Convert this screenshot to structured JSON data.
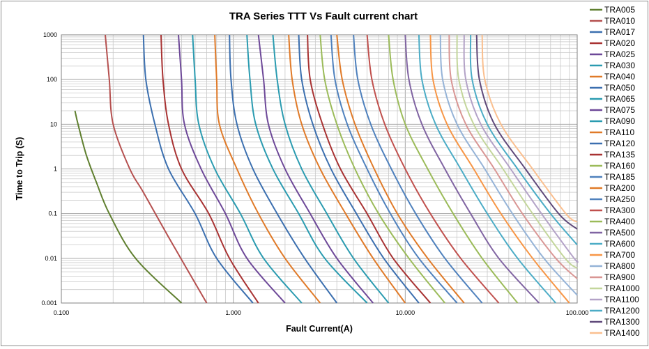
{
  "chart_data": {
    "type": "line",
    "title": "TRA  Series TTT Vs Fault current chart",
    "xlabel": "Fault Current(A)",
    "ylabel": "Time to Trip (S)",
    "x_scale": "log",
    "y_scale": "log",
    "xlim": [
      0.1,
      100
    ],
    "ylim": [
      0.001,
      1000
    ],
    "x_ticks": [
      {
        "value": 0.1,
        "label": "0.100"
      },
      {
        "value": 1,
        "label": "1.000"
      },
      {
        "value": 10,
        "label": "10.000"
      },
      {
        "value": 100,
        "label": "100.000"
      }
    ],
    "y_ticks": [
      {
        "value": 0.001,
        "label": "0.001"
      },
      {
        "value": 0.01,
        "label": "0.01"
      },
      {
        "value": 0.1,
        "label": "0.1"
      },
      {
        "value": 1,
        "label": "1"
      },
      {
        "value": 10,
        "label": "10"
      },
      {
        "value": 100,
        "label": "100"
      },
      {
        "value": 1000,
        "label": "1000"
      }
    ],
    "grid": true,
    "legend_position": "right",
    "series": [
      {
        "name": "TRA005",
        "color": "#5f7f2f",
        "points": [
          [
            0.12,
            20
          ],
          [
            0.125,
            10
          ],
          [
            0.14,
            2
          ],
          [
            0.16,
            0.5
          ],
          [
            0.19,
            0.1
          ],
          [
            0.27,
            0.01
          ],
          [
            0.5,
            0.001
          ]
        ]
      },
      {
        "name": "TRA010",
        "color": "#b5504f",
        "points": [
          [
            0.18,
            1000
          ],
          [
            0.19,
            100
          ],
          [
            0.2,
            10
          ],
          [
            0.25,
            1
          ],
          [
            0.3,
            0.3
          ],
          [
            0.42,
            0.03
          ],
          [
            0.7,
            0.001
          ]
        ]
      },
      {
        "name": "TRA017",
        "color": "#3b6faf",
        "points": [
          [
            0.3,
            1000
          ],
          [
            0.31,
            100
          ],
          [
            0.35,
            10
          ],
          [
            0.42,
            1
          ],
          [
            0.6,
            0.1
          ],
          [
            0.8,
            0.01
          ],
          [
            1.3,
            0.001
          ]
        ]
      },
      {
        "name": "TRA020",
        "color": "#a83232",
        "points": [
          [
            0.38,
            1000
          ],
          [
            0.39,
            100
          ],
          [
            0.42,
            10
          ],
          [
            0.5,
            1
          ],
          [
            0.72,
            0.1
          ],
          [
            0.95,
            0.01
          ],
          [
            1.4,
            0.001
          ]
        ]
      },
      {
        "name": "TRA025",
        "color": "#6d4898",
        "points": [
          [
            0.48,
            1000
          ],
          [
            0.5,
            100
          ],
          [
            0.52,
            10
          ],
          [
            0.65,
            1
          ],
          [
            0.9,
            0.1
          ],
          [
            1.2,
            0.01
          ],
          [
            2,
            0.001
          ]
        ]
      },
      {
        "name": "TRA030",
        "color": "#2a9bb0",
        "points": [
          [
            0.58,
            1000
          ],
          [
            0.6,
            100
          ],
          [
            0.63,
            10
          ],
          [
            0.78,
            1
          ],
          [
            1.1,
            0.1
          ],
          [
            1.5,
            0.01
          ],
          [
            2.5,
            0.001
          ]
        ]
      },
      {
        "name": "TRA040",
        "color": "#e07a28",
        "points": [
          [
            0.78,
            1000
          ],
          [
            0.8,
            100
          ],
          [
            0.83,
            10
          ],
          [
            1.05,
            1
          ],
          [
            1.4,
            0.1
          ],
          [
            2,
            0.01
          ],
          [
            3.2,
            0.001
          ]
        ]
      },
      {
        "name": "TRA050",
        "color": "#3b6faf",
        "points": [
          [
            0.95,
            1000
          ],
          [
            0.97,
            100
          ],
          [
            1.05,
            10
          ],
          [
            1.3,
            1
          ],
          [
            1.8,
            0.1
          ],
          [
            2.6,
            0.01
          ],
          [
            4,
            0.001
          ]
        ]
      },
      {
        "name": "TRA065",
        "color": "#2a9bb0",
        "points": [
          [
            1.2,
            1000
          ],
          [
            1.25,
            100
          ],
          [
            1.35,
            10
          ],
          [
            1.7,
            1
          ],
          [
            2.4,
            0.1
          ],
          [
            3.4,
            0.01
          ],
          [
            6,
            0.001
          ]
        ]
      },
      {
        "name": "TRA075",
        "color": "#6d4898",
        "points": [
          [
            1.4,
            1000
          ],
          [
            1.5,
            100
          ],
          [
            1.6,
            10
          ],
          [
            2,
            1
          ],
          [
            2.8,
            0.1
          ],
          [
            4,
            0.01
          ],
          [
            6.5,
            0.001
          ]
        ]
      },
      {
        "name": "TRA090",
        "color": "#2a9bb0",
        "points": [
          [
            1.7,
            1000
          ],
          [
            1.8,
            100
          ],
          [
            2,
            10
          ],
          [
            2.5,
            1
          ],
          [
            3.5,
            0.1
          ],
          [
            5,
            0.01
          ],
          [
            8,
            0.001
          ]
        ]
      },
      {
        "name": "TRA110",
        "color": "#e07a28",
        "points": [
          [
            2.1,
            1000
          ],
          [
            2.2,
            100
          ],
          [
            2.5,
            10
          ],
          [
            3.2,
            1
          ],
          [
            4.5,
            0.1
          ],
          [
            6.5,
            0.01
          ],
          [
            10,
            0.001
          ]
        ]
      },
      {
        "name": "TRA120",
        "color": "#3b6faf",
        "points": [
          [
            2.4,
            1000
          ],
          [
            2.5,
            100
          ],
          [
            2.9,
            10
          ],
          [
            3.7,
            1
          ],
          [
            5.2,
            0.1
          ],
          [
            7.5,
            0.01
          ],
          [
            12,
            0.001
          ]
        ]
      },
      {
        "name": "TRA135",
        "color": "#a83232",
        "points": [
          [
            2.7,
            1000
          ],
          [
            2.8,
            100
          ],
          [
            3.3,
            10
          ],
          [
            4.2,
            1
          ],
          [
            6,
            0.1
          ],
          [
            8.5,
            0.01
          ],
          [
            14,
            0.001
          ]
        ]
      },
      {
        "name": "TRA160",
        "color": "#9bbb59",
        "points": [
          [
            3.2,
            1000
          ],
          [
            3.4,
            100
          ],
          [
            4,
            10
          ],
          [
            5.1,
            1
          ],
          [
            7,
            0.1
          ],
          [
            10.5,
            0.01
          ],
          [
            17,
            0.001
          ]
        ]
      },
      {
        "name": "TRA185",
        "color": "#4f81bd",
        "points": [
          [
            3.7,
            1000
          ],
          [
            3.9,
            100
          ],
          [
            4.6,
            10
          ],
          [
            6,
            1
          ],
          [
            8.2,
            0.1
          ],
          [
            12,
            0.01
          ],
          [
            20,
            0.001
          ]
        ]
      },
      {
        "name": "TRA200",
        "color": "#e07a28",
        "points": [
          [
            4,
            1000
          ],
          [
            4.3,
            100
          ],
          [
            5.1,
            10
          ],
          [
            6.6,
            1
          ],
          [
            9,
            0.1
          ],
          [
            13.5,
            0.01
          ],
          [
            22,
            0.001
          ]
        ]
      },
      {
        "name": "TRA250",
        "color": "#4f81bd",
        "points": [
          [
            5,
            1000
          ],
          [
            5.3,
            100
          ],
          [
            6.3,
            10
          ],
          [
            8.3,
            1
          ],
          [
            11.5,
            0.1
          ],
          [
            17,
            0.01
          ],
          [
            28,
            0.001
          ]
        ]
      },
      {
        "name": "TRA300",
        "color": "#c0504d",
        "points": [
          [
            6,
            1000
          ],
          [
            6.4,
            100
          ],
          [
            7.6,
            10
          ],
          [
            10,
            1
          ],
          [
            14,
            0.1
          ],
          [
            21,
            0.01
          ],
          [
            35,
            0.001
          ]
        ]
      },
      {
        "name": "TRA400",
        "color": "#9bbb59",
        "points": [
          [
            8,
            1000
          ],
          [
            8.5,
            100
          ],
          [
            10,
            10
          ],
          [
            13.5,
            1
          ],
          [
            19,
            0.1
          ],
          [
            28,
            0.01
          ],
          [
            45,
            0.001
          ]
        ]
      },
      {
        "name": "TRA500",
        "color": "#8064a2",
        "points": [
          [
            10,
            1000
          ],
          [
            10.5,
            100
          ],
          [
            12.5,
            10
          ],
          [
            17,
            1
          ],
          [
            24,
            0.1
          ],
          [
            35,
            0.01
          ],
          [
            60,
            0.001
          ]
        ]
      },
      {
        "name": "TRA600",
        "color": "#4bacc6",
        "points": [
          [
            12,
            1000
          ],
          [
            12.5,
            100
          ],
          [
            15,
            10
          ],
          [
            21,
            1
          ],
          [
            30,
            0.1
          ],
          [
            45,
            0.01
          ],
          [
            75,
            0.001
          ]
        ]
      },
      {
        "name": "TRA700",
        "color": "#f79646",
        "points": [
          [
            14,
            1000
          ],
          [
            14.5,
            100
          ],
          [
            17.5,
            10
          ],
          [
            25,
            1
          ],
          [
            36,
            0.1
          ],
          [
            55,
            0.01
          ],
          [
            90,
            0.001
          ]
        ]
      },
      {
        "name": "TRA800",
        "color": "#95b3d7",
        "points": [
          [
            16,
            1000
          ],
          [
            16.5,
            100
          ],
          [
            20,
            10
          ],
          [
            29,
            1
          ],
          [
            42,
            0.1
          ],
          [
            64,
            0.01
          ],
          [
            100,
            0.0015
          ]
        ]
      },
      {
        "name": "TRA900",
        "color": "#d99694",
        "points": [
          [
            18,
            1000
          ],
          [
            18.5,
            100
          ],
          [
            22.5,
            10
          ],
          [
            33,
            1
          ],
          [
            48,
            0.1
          ],
          [
            75,
            0.01
          ],
          [
            100,
            0.0035
          ]
        ]
      },
      {
        "name": "TRA1000",
        "color": "#c3d69b",
        "points": [
          [
            20,
            1000
          ],
          [
            20.5,
            100
          ],
          [
            25,
            10
          ],
          [
            37,
            1
          ],
          [
            55,
            0.1
          ],
          [
            85,
            0.01
          ],
          [
            100,
            0.006
          ]
        ]
      },
      {
        "name": "TRA1100",
        "color": "#b3a2c7",
        "points": [
          [
            22,
            1000
          ],
          [
            22.5,
            100
          ],
          [
            27.5,
            10
          ],
          [
            41,
            1
          ],
          [
            62,
            0.1
          ],
          [
            96,
            0.01
          ],
          [
            100,
            0.009
          ]
        ]
      },
      {
        "name": "TRA1200",
        "color": "#4bacc6",
        "points": [
          [
            24,
            1000
          ],
          [
            24.5,
            100
          ],
          [
            30,
            10
          ],
          [
            45,
            1
          ],
          [
            70,
            0.1
          ],
          [
            100,
            0.02
          ]
        ]
      },
      {
        "name": "TRA1300",
        "color": "#5f497a",
        "points": [
          [
            26,
            1000
          ],
          [
            27,
            100
          ],
          [
            33,
            10
          ],
          [
            50,
            1
          ],
          [
            78,
            0.1
          ],
          [
            100,
            0.045
          ]
        ]
      },
      {
        "name": "TRA1400",
        "color": "#fabf8f",
        "points": [
          [
            28,
            1000
          ],
          [
            29,
            100
          ],
          [
            36,
            10
          ],
          [
            55,
            1
          ],
          [
            86,
            0.1
          ],
          [
            100,
            0.065
          ]
        ]
      }
    ]
  }
}
